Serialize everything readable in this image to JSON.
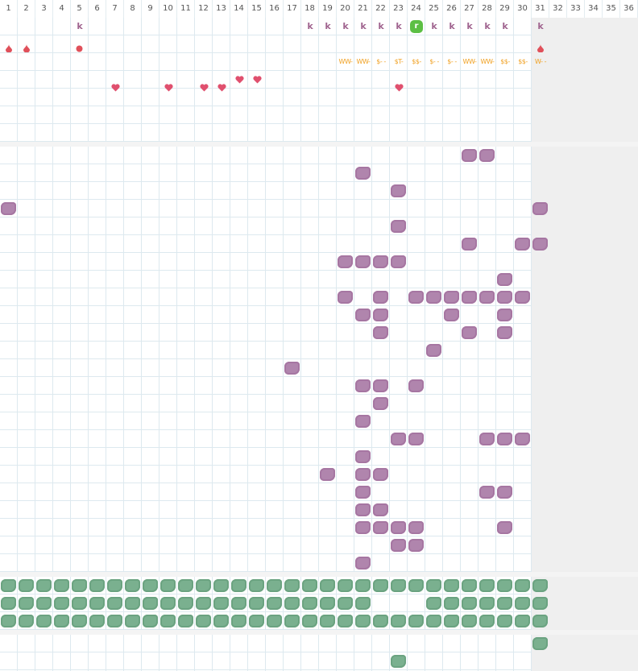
{
  "header": [
    "1",
    "2",
    "3",
    "4",
    "5",
    "6",
    "7",
    "8",
    "9",
    "10",
    "11",
    "12",
    "13",
    "14",
    "15",
    "16",
    "17",
    "18",
    "19",
    "20",
    "21",
    "22",
    "23",
    "24",
    "25",
    "26",
    "27",
    "28",
    "29",
    "30",
    "31",
    "32",
    "33",
    "34",
    "35",
    "36"
  ],
  "tracker": {
    "k_label": "k",
    "k_cols": [
      5,
      18,
      19,
      20,
      21,
      22,
      23,
      25,
      26,
      27,
      28,
      29,
      31
    ],
    "badge": {
      "col": 24,
      "text": "r"
    },
    "drop_cols": [
      1,
      2,
      31
    ],
    "dot_cols": [
      5
    ],
    "notes": [
      {
        "col": 20,
        "text": "WW-"
      },
      {
        "col": 21,
        "text": "WW-"
      },
      {
        "col": 22,
        "text": "$- -"
      },
      {
        "col": 23,
        "text": "$T-"
      },
      {
        "col": 24,
        "text": "$$-"
      },
      {
        "col": 25,
        "text": "$- -"
      },
      {
        "col": 26,
        "text": "$- -"
      },
      {
        "col": 27,
        "text": "WW-"
      },
      {
        "col": 28,
        "text": "WW-"
      },
      {
        "col": 29,
        "text": "$$-"
      },
      {
        "col": 30,
        "text": "$$-"
      },
      {
        "col": 31,
        "text": "W- -"
      }
    ],
    "heart_cols": [
      7,
      10,
      12,
      13,
      14,
      15,
      23
    ]
  },
  "blocks": [
    [
      27,
      28
    ],
    [
      21
    ],
    [
      23
    ],
    [
      1,
      31
    ],
    [
      23
    ],
    [
      27,
      30,
      31
    ],
    [
      20,
      21,
      22,
      23
    ],
    [
      29
    ],
    [
      20,
      22,
      24,
      25,
      26,
      27,
      28,
      29,
      30
    ],
    [
      21,
      22,
      26,
      29
    ],
    [
      22,
      27,
      29
    ],
    [
      25
    ],
    [
      17
    ],
    [
      21,
      22,
      24
    ],
    [
      22
    ],
    [
      21
    ],
    [
      23,
      24,
      28,
      29,
      30
    ],
    [
      21
    ],
    [
      19,
      21,
      22
    ],
    [
      21,
      28,
      29
    ],
    [
      21,
      22
    ],
    [
      21,
      22,
      23,
      24,
      29
    ],
    [
      23,
      24
    ],
    [
      21
    ]
  ],
  "green": [
    [
      1,
      2,
      3,
      4,
      5,
      6,
      7,
      8,
      9,
      10,
      11,
      12,
      13,
      14,
      15,
      16,
      17,
      18,
      19,
      20,
      21,
      22,
      23,
      24,
      25,
      26,
      27,
      28,
      29,
      30,
      31
    ],
    [
      1,
      2,
      3,
      4,
      5,
      6,
      7,
      8,
      9,
      10,
      11,
      12,
      13,
      14,
      15,
      16,
      17,
      18,
      19,
      20,
      21,
      25,
      26,
      27,
      28,
      29,
      30,
      31
    ],
    [
      1,
      2,
      3,
      4,
      5,
      6,
      7,
      8,
      9,
      10,
      11,
      12,
      13,
      14,
      15,
      16,
      17,
      18,
      19,
      20,
      21,
      22,
      23,
      24,
      25,
      26,
      27,
      28,
      29,
      30,
      31
    ]
  ],
  "bottom": [
    [
      31
    ],
    [
      23
    ]
  ]
}
